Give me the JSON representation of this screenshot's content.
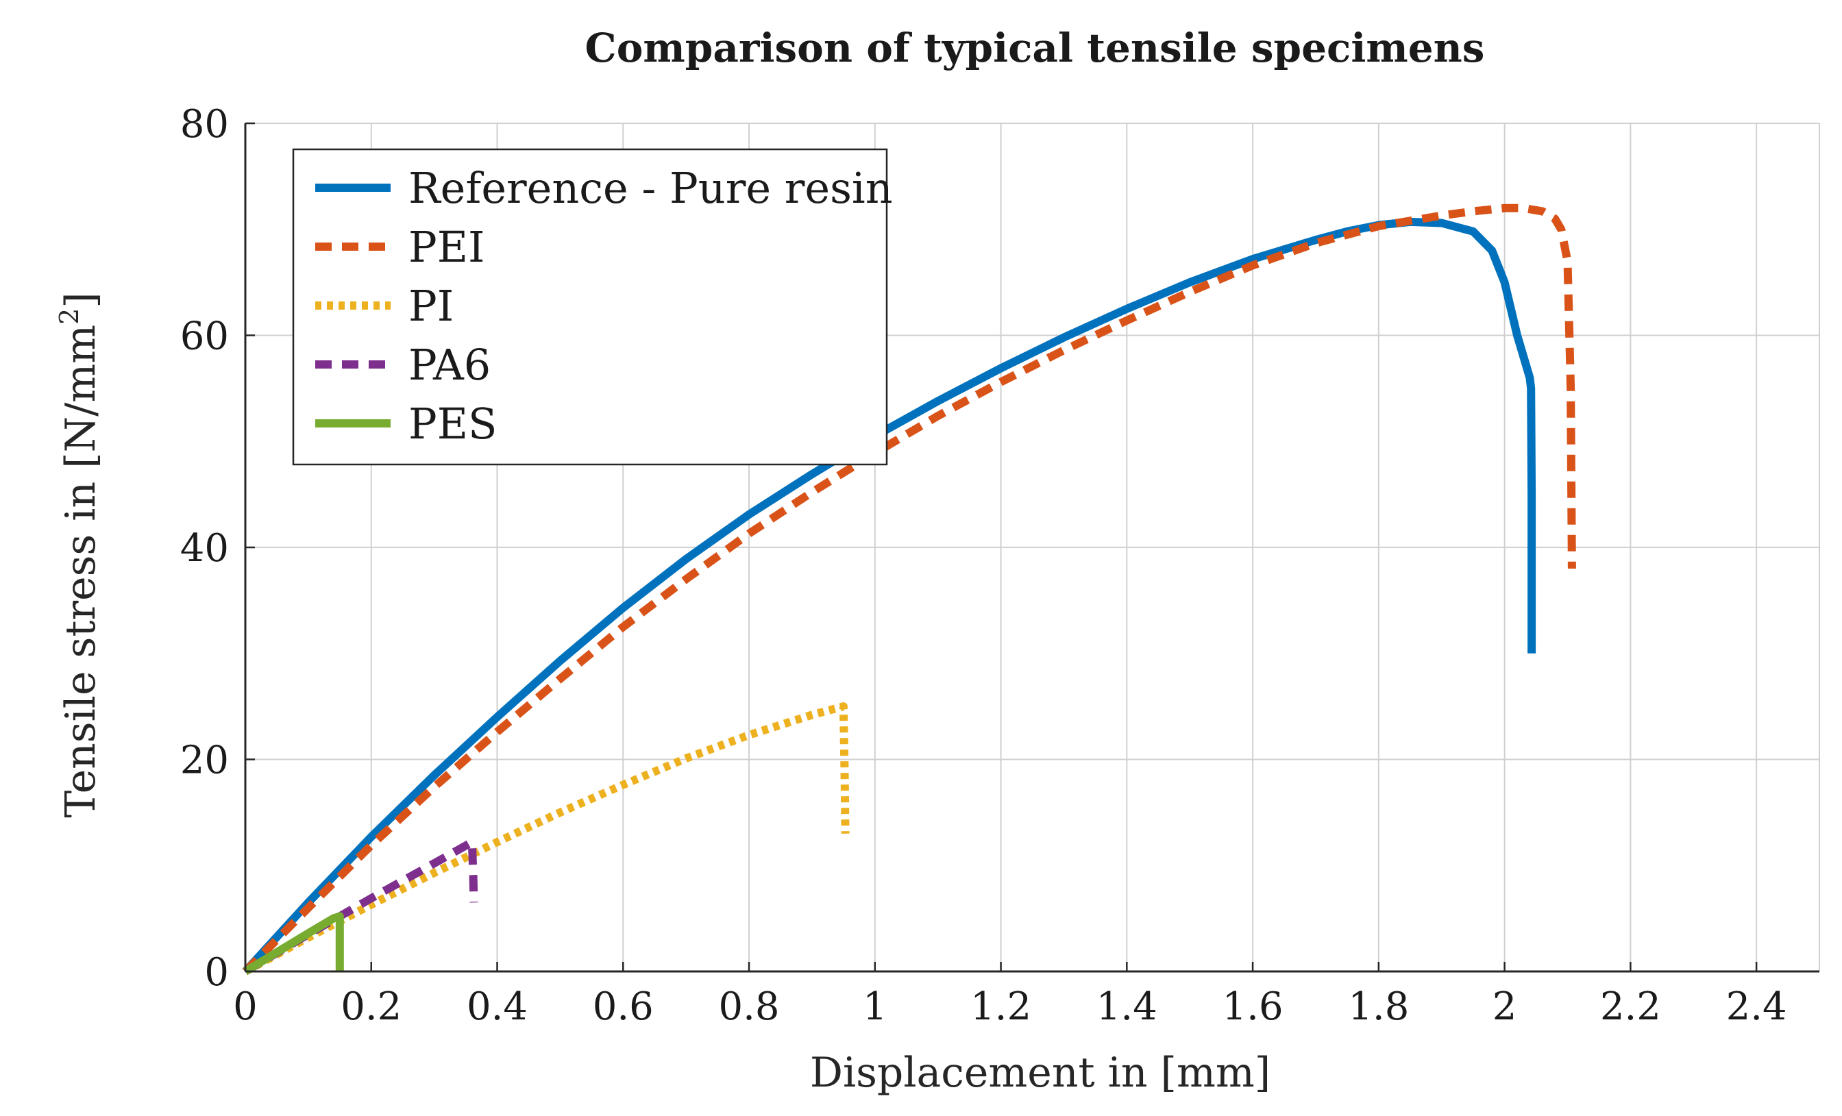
{
  "chart_data": {
    "type": "line",
    "title": "Comparison of typical tensile specimens",
    "xlabel": "Displacement in [mm]",
    "ylabel": "Tensile stress in [N/mm",
    "ylabel_sup": "2",
    "ylabel_close": "]",
    "xlim": [
      0,
      2.5
    ],
    "ylim": [
      0,
      80
    ],
    "xticks": [
      0,
      0.2,
      0.4,
      0.6,
      0.8,
      1,
      1.2,
      1.4,
      1.6,
      1.8,
      2,
      2.2,
      2.4
    ],
    "xtick_labels": [
      "0",
      "0.2",
      "0.4",
      "0.6",
      "0.8",
      "1",
      "1.2",
      "1.4",
      "1.6",
      "1.8",
      "2",
      "2.2",
      "2.4"
    ],
    "yticks": [
      0,
      20,
      40,
      60,
      80
    ],
    "ytick_labels": [
      "0",
      "20",
      "40",
      "60",
      "80"
    ],
    "grid": true,
    "legend_position": "top-left",
    "series": [
      {
        "name": "Reference - Pure resin",
        "color": "#0072BD",
        "style": "solid",
        "x": [
          0,
          0.1,
          0.2,
          0.3,
          0.4,
          0.5,
          0.6,
          0.7,
          0.8,
          0.9,
          1.0,
          1.1,
          1.2,
          1.3,
          1.4,
          1.5,
          1.6,
          1.7,
          1.75,
          1.8,
          1.85,
          1.9,
          1.95,
          1.98,
          2.0,
          2.02,
          2.04,
          2.042,
          2.043,
          2.043
        ],
        "y": [
          0,
          6.5,
          12.7,
          18.5,
          24,
          29.3,
          34.3,
          38.9,
          43.1,
          46.9,
          50.5,
          53.8,
          56.9,
          59.8,
          62.5,
          65.0,
          67.2,
          69.0,
          69.8,
          70.4,
          70.7,
          70.6,
          69.8,
          68,
          65,
          60,
          56,
          55,
          45,
          30
        ]
      },
      {
        "name": "PEI",
        "color": "#D95319",
        "style": "dashed",
        "x": [
          0,
          0.1,
          0.2,
          0.3,
          0.4,
          0.5,
          0.6,
          0.7,
          0.8,
          0.9,
          1.0,
          1.1,
          1.2,
          1.3,
          1.4,
          1.5,
          1.6,
          1.7,
          1.8,
          1.9,
          1.95,
          2.0,
          2.03,
          2.06,
          2.08,
          2.09,
          2.1,
          2.105,
          2.107
        ],
        "y": [
          0,
          6.0,
          11.9,
          17.4,
          22.6,
          27.6,
          32.5,
          37.0,
          41.3,
          45.2,
          48.9,
          52.4,
          55.6,
          58.6,
          61.4,
          64.1,
          66.6,
          68.7,
          70.3,
          71.3,
          71.7,
          72.0,
          72.0,
          71.7,
          71.0,
          70.0,
          67,
          55,
          38
        ]
      },
      {
        "name": "PI",
        "color": "#EDB120",
        "style": "dotted",
        "x": [
          0,
          0.1,
          0.2,
          0.3,
          0.4,
          0.5,
          0.6,
          0.7,
          0.8,
          0.9,
          0.95,
          0.952,
          0.953
        ],
        "y": [
          0,
          3.2,
          6.3,
          9.3,
          12.2,
          15.0,
          17.6,
          20.1,
          22.3,
          24.2,
          25.0,
          18,
          13
        ]
      },
      {
        "name": "PA6",
        "color": "#7E2F8E",
        "style": "dashed",
        "x": [
          0,
          0.1,
          0.2,
          0.3,
          0.36,
          0.362,
          0.363
        ],
        "y": [
          0,
          3.5,
          6.9,
          10.2,
          12.2,
          9,
          6.5
        ]
      },
      {
        "name": "PES",
        "color": "#77AC30",
        "style": "solid",
        "x": [
          0,
          0.05,
          0.1,
          0.14,
          0.15,
          0.15
        ],
        "y": [
          0,
          1.8,
          3.6,
          5.0,
          5.2,
          0
        ]
      }
    ]
  }
}
